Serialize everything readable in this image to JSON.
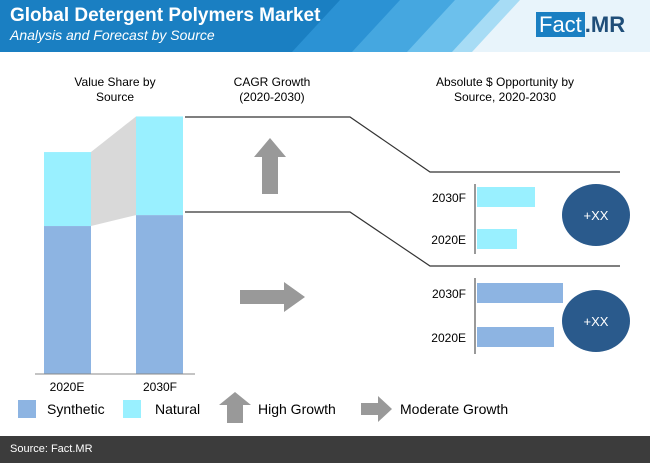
{
  "header": {
    "title": "Global Detergent Polymers Market",
    "subtitle": "Analysis and Forecast by Source",
    "logo_main": "Fact",
    "logo_dot": ".",
    "logo_suffix": "MR"
  },
  "sections": {
    "value_share": "Value Share by Source",
    "cagr": "CAGR Growth (2020-2030)",
    "opportunity": "Absolute $ Opportunity by Source, 2020-2030"
  },
  "colors": {
    "synthetic": "#8db4e2",
    "natural": "#99f0ff",
    "arrow": "#999999",
    "circle": "#2a5a8c",
    "header_bg": "#1a7fc2",
    "footer_bg": "#3c3c3c"
  },
  "chart_data": [
    {
      "type": "bar",
      "stacked": true,
      "title": "Value Share by Source",
      "categories": [
        "2020E",
        "2030F"
      ],
      "series": [
        {
          "name": "Synthetic",
          "values": [
            54,
            58
          ]
        },
        {
          "name": "Natural",
          "values": [
            27,
            36
          ]
        }
      ]
    },
    {
      "type": "bar",
      "orientation": "horizontal",
      "title": "Absolute $ Opportunity by Source, 2020-2030",
      "groups": [
        {
          "name": "Natural",
          "categories": [
            "2030F",
            "2020E"
          ],
          "values": [
            58,
            40
          ],
          "total_label": "+XX",
          "growth": "High Growth"
        },
        {
          "name": "Synthetic",
          "categories": [
            "2030F",
            "2020E"
          ],
          "values": [
            86,
            77
          ],
          "total_label": "+XX",
          "growth": "Moderate Growth"
        }
      ]
    }
  ],
  "legend": {
    "synthetic": "Synthetic",
    "natural": "Natural",
    "high_growth": "High Growth",
    "moderate_growth": "Moderate Growth"
  },
  "footer": {
    "source": "Source: Fact.MR"
  }
}
